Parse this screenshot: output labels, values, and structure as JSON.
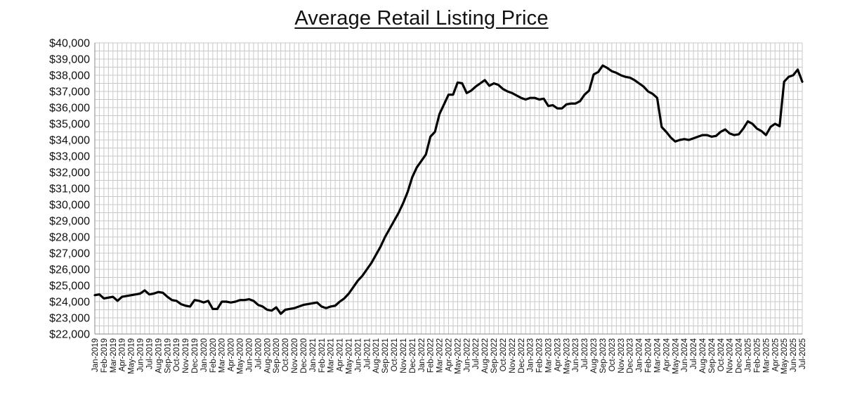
{
  "chart_data": {
    "type": "line",
    "title": "Average Retail Listing Price",
    "xlabel": "",
    "ylabel": "",
    "ylim": [
      22000,
      40000
    ],
    "y_tick_step": 1000,
    "grid": true,
    "legend": "none",
    "line_color": "#000000",
    "grid_color": "#c8c8c8",
    "x_categories": [
      "Jan-2019",
      "Feb-2019",
      "Mar-2019",
      "Apr-2019",
      "May-2019",
      "Jun-2019",
      "Jul-2019",
      "Aug-2019",
      "Sep-2019",
      "Oct-2019",
      "Nov-2019",
      "Dec-2019",
      "Jan-2020",
      "Feb-2020",
      "Mar-2020",
      "Apr-2020",
      "May-2020",
      "Jun-2020",
      "Jul-2020",
      "Aug-2020",
      "Sep-2020",
      "Oct-2020",
      "Nov-2020",
      "Dec-2020",
      "Jan-2021",
      "Feb-2021",
      "Mar-2021",
      "Apr-2021",
      "May-2021",
      "Jun-2021",
      "Jul-2021",
      "Aug-2021",
      "Sep-2021",
      "Oct-2021",
      "Nov-2021",
      "Dec-2021",
      "Jan-2022",
      "Feb-2022",
      "Mar-2022",
      "Apr-2022",
      "May-2022",
      "Jun-2022",
      "Jul-2022",
      "Aug-2022",
      "Sep-2022",
      "Oct-2022",
      "Nov-2022",
      "Dec-2022",
      "Jan-2023",
      "Feb-2023",
      "Mar-2023",
      "Apr-2023",
      "May-2023",
      "Jun-2023",
      "Jul-2023",
      "Aug-2023",
      "Sep-2023",
      "Oct-2023",
      "Nov-2023",
      "Dec-2023",
      "Jan-2024",
      "Feb-2024",
      "Mar-2024",
      "Apr-2024",
      "May-2024",
      "Jun-2024",
      "Jul-2024",
      "Aug-2024",
      "Sep-2024",
      "Oct-2024",
      "Nov-2024",
      "Dec-2024",
      "Jan-2025",
      "Feb-2025",
      "Mar-2025",
      "Apr-2025",
      "May-2025",
      "Jun-2025",
      "Jul-2025"
    ],
    "series": [
      {
        "points": [
          [
            "Jan-2019",
            24400
          ],
          [
            "Jan-2019",
            24450
          ],
          [
            "Feb-2019",
            24200
          ],
          [
            "Feb-2019",
            24250
          ],
          [
            "Mar-2019",
            24300
          ],
          [
            "Mar-2019",
            24050
          ],
          [
            "Apr-2019",
            24300
          ],
          [
            "Apr-2019",
            24350
          ],
          [
            "May-2019",
            24400
          ],
          [
            "May-2019",
            24450
          ],
          [
            "Jun-2019",
            24500
          ],
          [
            "Jun-2019",
            24700
          ],
          [
            "Jul-2019",
            24450
          ],
          [
            "Jul-2019",
            24500
          ],
          [
            "Aug-2019",
            24600
          ],
          [
            "Aug-2019",
            24550
          ],
          [
            "Sep-2019",
            24300
          ],
          [
            "Sep-2019",
            24100
          ],
          [
            "Oct-2019",
            24050
          ],
          [
            "Oct-2019",
            23850
          ],
          [
            "Nov-2019",
            23750
          ],
          [
            "Nov-2019",
            23700
          ],
          [
            "Dec-2019",
            24100
          ],
          [
            "Dec-2019",
            24050
          ],
          [
            "Jan-2020",
            23950
          ],
          [
            "Jan-2020",
            24050
          ],
          [
            "Feb-2020",
            23550
          ],
          [
            "Feb-2020",
            23550
          ],
          [
            "Mar-2020",
            24000
          ],
          [
            "Mar-2020",
            24000
          ],
          [
            "Apr-2020",
            23950
          ],
          [
            "Apr-2020",
            24000
          ],
          [
            "May-2020",
            24100
          ],
          [
            "May-2020",
            24100
          ],
          [
            "Jun-2020",
            24150
          ],
          [
            "Jun-2020",
            24050
          ],
          [
            "Jul-2020",
            23800
          ],
          [
            "Jul-2020",
            23700
          ],
          [
            "Aug-2020",
            23500
          ],
          [
            "Aug-2020",
            23450
          ],
          [
            "Sep-2020",
            23650
          ],
          [
            "Sep-2020",
            23250
          ],
          [
            "Oct-2020",
            23500
          ],
          [
            "Oct-2020",
            23550
          ],
          [
            "Nov-2020",
            23600
          ],
          [
            "Nov-2020",
            23700
          ],
          [
            "Dec-2020",
            23800
          ],
          [
            "Dec-2020",
            23850
          ],
          [
            "Jan-2021",
            23900
          ],
          [
            "Jan-2021",
            23950
          ],
          [
            "Feb-2021",
            23700
          ],
          [
            "Feb-2021",
            23600
          ],
          [
            "Mar-2021",
            23700
          ],
          [
            "Mar-2021",
            23750
          ],
          [
            "Apr-2021",
            24000
          ],
          [
            "Apr-2021",
            24200
          ],
          [
            "May-2021",
            24500
          ],
          [
            "May-2021",
            24900
          ],
          [
            "Jun-2021",
            25300
          ],
          [
            "Jun-2021",
            25600
          ],
          [
            "Jul-2021",
            26000
          ],
          [
            "Jul-2021",
            26400
          ],
          [
            "Aug-2021",
            26900
          ],
          [
            "Aug-2021",
            27400
          ],
          [
            "Sep-2021",
            28000
          ],
          [
            "Sep-2021",
            28500
          ],
          [
            "Oct-2021",
            29000
          ],
          [
            "Oct-2021",
            29500
          ],
          [
            "Nov-2021",
            30100
          ],
          [
            "Nov-2021",
            30800
          ],
          [
            "Dec-2021",
            31700
          ],
          [
            "Dec-2021",
            32300
          ],
          [
            "Jan-2022",
            32700
          ],
          [
            "Jan-2022",
            33100
          ],
          [
            "Feb-2022",
            34200
          ],
          [
            "Feb-2022",
            34500
          ],
          [
            "Mar-2022",
            35600
          ],
          [
            "Mar-2022",
            36200
          ],
          [
            "Apr-2022",
            36800
          ],
          [
            "Apr-2022",
            36800
          ],
          [
            "May-2022",
            37550
          ],
          [
            "May-2022",
            37500
          ],
          [
            "Jun-2022",
            36900
          ],
          [
            "Jun-2022",
            37050
          ],
          [
            "Jul-2022",
            37300
          ],
          [
            "Jul-2022",
            37500
          ],
          [
            "Aug-2022",
            37700
          ],
          [
            "Aug-2022",
            37350
          ],
          [
            "Sep-2022",
            37500
          ],
          [
            "Sep-2022",
            37400
          ],
          [
            "Oct-2022",
            37150
          ],
          [
            "Oct-2022",
            37000
          ],
          [
            "Nov-2022",
            36900
          ],
          [
            "Nov-2022",
            36750
          ],
          [
            "Dec-2022",
            36600
          ],
          [
            "Dec-2022",
            36500
          ],
          [
            "Jan-2023",
            36600
          ],
          [
            "Jan-2023",
            36600
          ],
          [
            "Feb-2023",
            36500
          ],
          [
            "Feb-2023",
            36550
          ],
          [
            "Mar-2023",
            36100
          ],
          [
            "Mar-2023",
            36150
          ],
          [
            "Apr-2023",
            35950
          ],
          [
            "Apr-2023",
            35950
          ],
          [
            "May-2023",
            36200
          ],
          [
            "May-2023",
            36250
          ],
          [
            "Jun-2023",
            36250
          ],
          [
            "Jun-2023",
            36400
          ],
          [
            "Jul-2023",
            36800
          ],
          [
            "Jul-2023",
            37050
          ],
          [
            "Aug-2023",
            38050
          ],
          [
            "Aug-2023",
            38200
          ],
          [
            "Sep-2023",
            38600
          ],
          [
            "Sep-2023",
            38450
          ],
          [
            "Oct-2023",
            38250
          ],
          [
            "Oct-2023",
            38150
          ],
          [
            "Nov-2023",
            38000
          ],
          [
            "Nov-2023",
            37900
          ],
          [
            "Dec-2023",
            37850
          ],
          [
            "Dec-2023",
            37700
          ],
          [
            "Jan-2024",
            37500
          ],
          [
            "Jan-2024",
            37300
          ],
          [
            "Feb-2024",
            37000
          ],
          [
            "Feb-2024",
            36850
          ],
          [
            "Mar-2024",
            36600
          ],
          [
            "Mar-2024",
            34800
          ],
          [
            "Apr-2024",
            34500
          ],
          [
            "Apr-2024",
            34150
          ],
          [
            "May-2024",
            33900
          ],
          [
            "May-2024",
            34000
          ],
          [
            "Jun-2024",
            34050
          ],
          [
            "Jun-2024",
            34000
          ],
          [
            "Jul-2024",
            34100
          ],
          [
            "Jul-2024",
            34200
          ],
          [
            "Aug-2024",
            34300
          ],
          [
            "Aug-2024",
            34300
          ],
          [
            "Sep-2024",
            34200
          ],
          [
            "Sep-2024",
            34250
          ],
          [
            "Oct-2024",
            34500
          ],
          [
            "Oct-2024",
            34650
          ],
          [
            "Nov-2024",
            34400
          ],
          [
            "Nov-2024",
            34300
          ],
          [
            "Dec-2024",
            34350
          ],
          [
            "Dec-2024",
            34700
          ],
          [
            "Jan-2025",
            35150
          ],
          [
            "Jan-2025",
            35000
          ],
          [
            "Feb-2025",
            34700
          ],
          [
            "Feb-2025",
            34550
          ],
          [
            "Mar-2025",
            34300
          ],
          [
            "Mar-2025",
            34800
          ],
          [
            "Apr-2025",
            35000
          ],
          [
            "Apr-2025",
            34850
          ],
          [
            "May-2025",
            37600
          ],
          [
            "May-2025",
            37900
          ],
          [
            "Jun-2025",
            38000
          ],
          [
            "Jun-2025",
            38350
          ],
          [
            "Jul-2025",
            37600
          ]
        ]
      }
    ]
  }
}
